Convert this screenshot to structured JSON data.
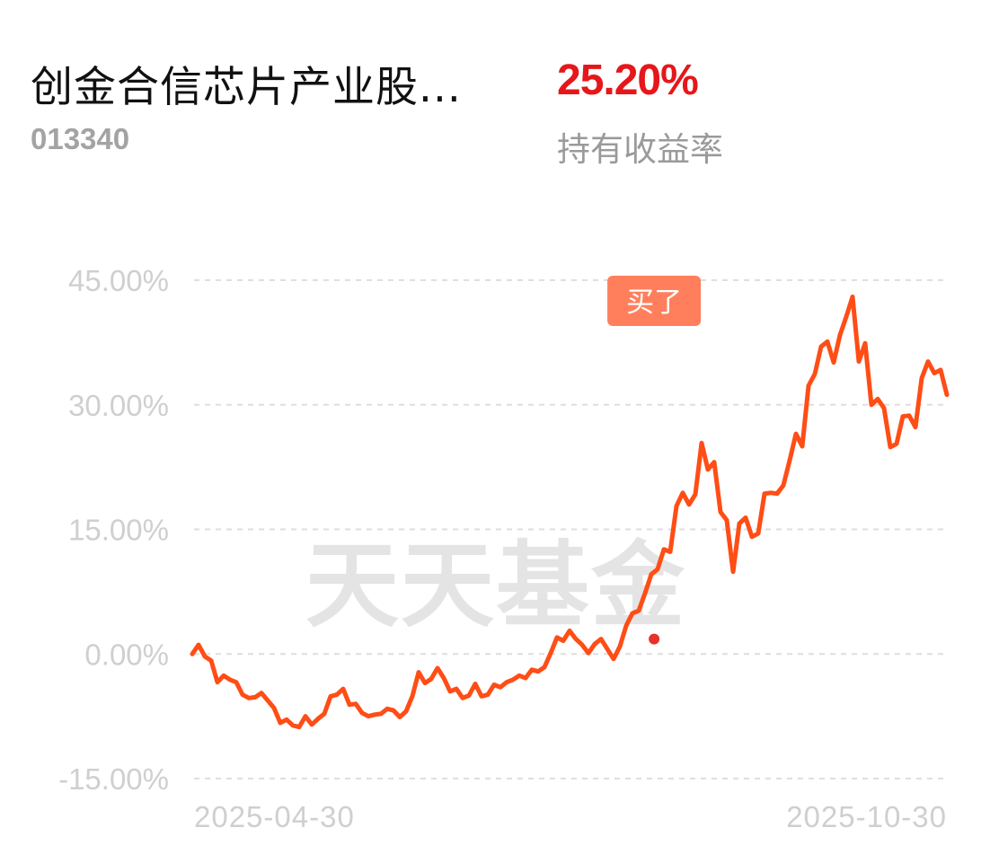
{
  "header": {
    "fund_name": "创金合信芯片产业股...",
    "fund_code": "013340",
    "return_value": "25.20%",
    "return_label": "持有收益率"
  },
  "colors": {
    "line": "#ff4d16",
    "positive": "#e5171b",
    "buy_marker": "#ff7f5c",
    "grid": "#dedede",
    "axis_text": "#cfcfcf"
  },
  "watermark": "天天基金",
  "chart_data": {
    "type": "line",
    "title": "",
    "xlabel": "",
    "ylabel": "",
    "ylim": [
      -15,
      45
    ],
    "yticks": [
      45,
      30,
      15,
      0,
      -15
    ],
    "ytick_labels": [
      "45.00%",
      "30.00%",
      "15.00%",
      "0.00%",
      "-15.00%"
    ],
    "xtick_labels": [
      "2025-04-30",
      "2025-10-30"
    ],
    "x_range": [
      "2025-04-30",
      "2025-10-30"
    ],
    "grid": true,
    "legend": "none",
    "buy_marker": {
      "label": "买了",
      "date": "2025-08-20",
      "value": 1.8
    },
    "series": [
      {
        "values": [
          0,
          1.1,
          -0.3,
          -0.8,
          -3.4,
          -2.6,
          -3.1,
          -3.4,
          -4.9,
          -5.3,
          -5.2,
          -4.7,
          -5.6,
          -6.5,
          -8.3,
          -7.9,
          -8.6,
          -8.8,
          -7.5,
          -8.5,
          -7.8,
          -7.2,
          -5.1,
          -4.9,
          -4.2,
          -6.1,
          -6.0,
          -7.1,
          -7.5,
          -7.3,
          -7.2,
          -6.6,
          -6.8,
          -7.6,
          -6.9,
          -5.1,
          -2.2,
          -3.5,
          -3.0,
          -1.7,
          -2.9,
          -4.5,
          -4.2,
          -5.3,
          -5.0,
          -3.6,
          -5.1,
          -4.9,
          -3.7,
          -4.0,
          -3.4,
          -3.1,
          -2.6,
          -2.9,
          -1.9,
          -2.1,
          -1.6,
          0.1,
          2.0,
          1.6,
          2.8,
          1.8,
          1.1,
          0.1,
          1.2,
          1.8,
          0.6,
          -0.6,
          0.9,
          3.4,
          4.9,
          5.2,
          7.3,
          9.6,
          10.2,
          12.6,
          12.3,
          17.8,
          19.4,
          18.0,
          19.2,
          25.4,
          22.2,
          23.1,
          17.1,
          16.1,
          9.9,
          15.7,
          16.4,
          14.1,
          14.5,
          19.3,
          19.4,
          19.3,
          20.3,
          23.3,
          26.5,
          25.0,
          32.3,
          33.7,
          37.0,
          37.6,
          35.1,
          38.4,
          40.6,
          43.0,
          35.2,
          37.4,
          30.0,
          30.7,
          29.6,
          24.9,
          25.3,
          28.6,
          28.7,
          27.3,
          33.2,
          35.2,
          33.8,
          34.2,
          31.2
        ]
      }
    ]
  }
}
